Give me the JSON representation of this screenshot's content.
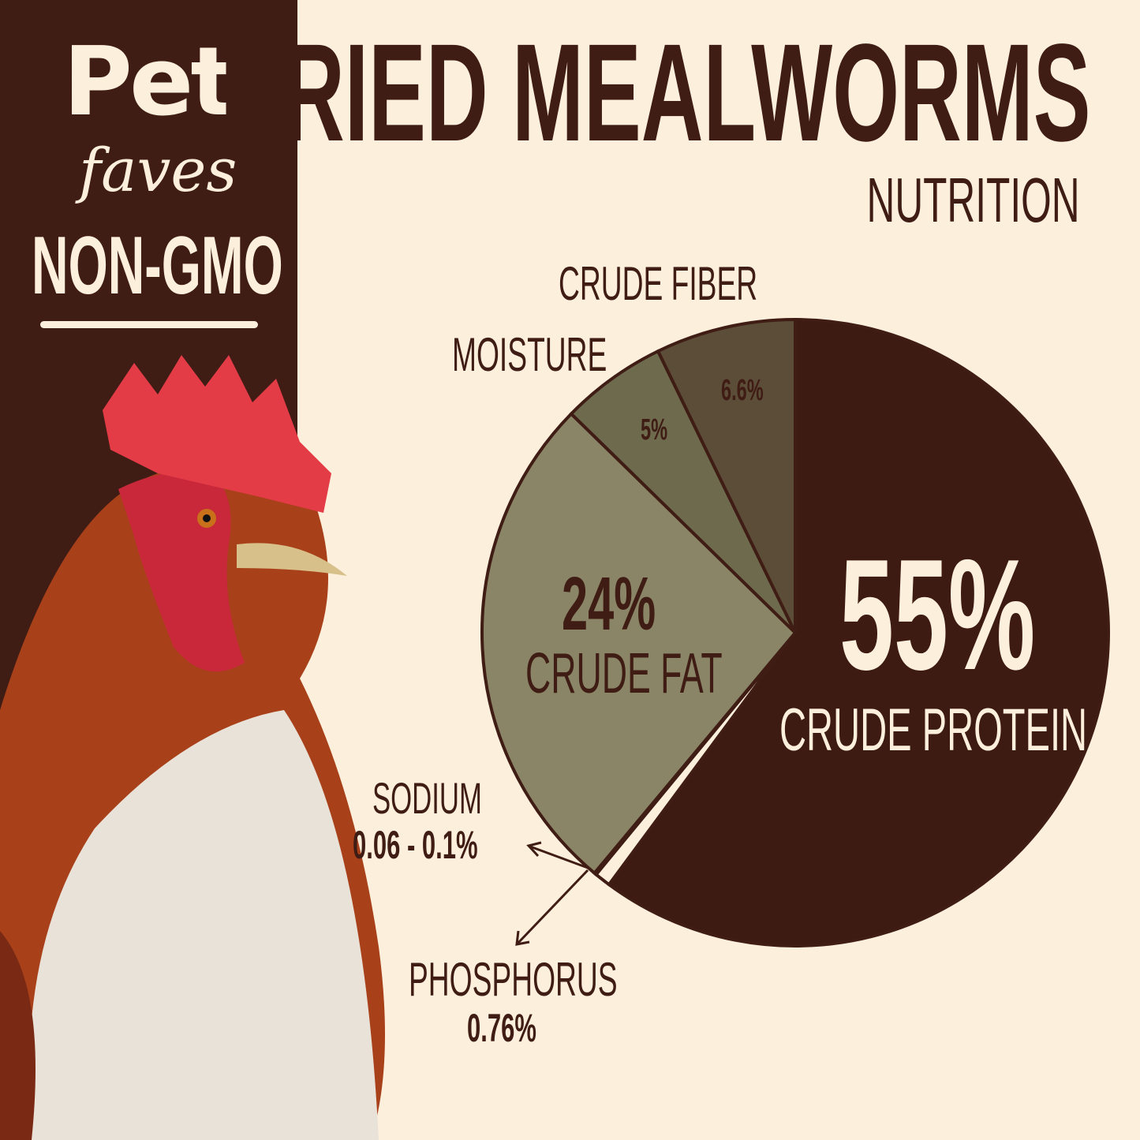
{
  "brand": {
    "logo_line1": "Pet",
    "logo_line2": "faves",
    "badge": "NON-GMO"
  },
  "header": {
    "title": "DRIED MEALWORMS",
    "subtitle": "NUTRITION"
  },
  "colors": {
    "background": "#fcefdc",
    "sidebar": "#3f1c14",
    "protein": "#3d1a12",
    "fat": "#8a8566",
    "moisture": "#6e6a4e",
    "fiber": "#5c4d38",
    "minor": "#fcefdc"
  },
  "chart_data": {
    "type": "pie",
    "title": "DRIED MEALWORMS NUTRITION",
    "slices": [
      {
        "name": "CRUDE PROTEIN",
        "label": "55%",
        "value": 55
      },
      {
        "name": "PHOSPHORUS",
        "label": "0.76%",
        "value": 0.76
      },
      {
        "name": "SODIUM",
        "label": "0.06 - 0.1%",
        "value": 0.1
      },
      {
        "name": "CRUDE FAT",
        "label": "24%",
        "value": 24
      },
      {
        "name": "MOISTURE",
        "label": "5%",
        "value": 5
      },
      {
        "name": "CRUDE FIBER",
        "label": "6.6%",
        "value": 6.6
      }
    ]
  },
  "image": {
    "subject": "rooster"
  }
}
